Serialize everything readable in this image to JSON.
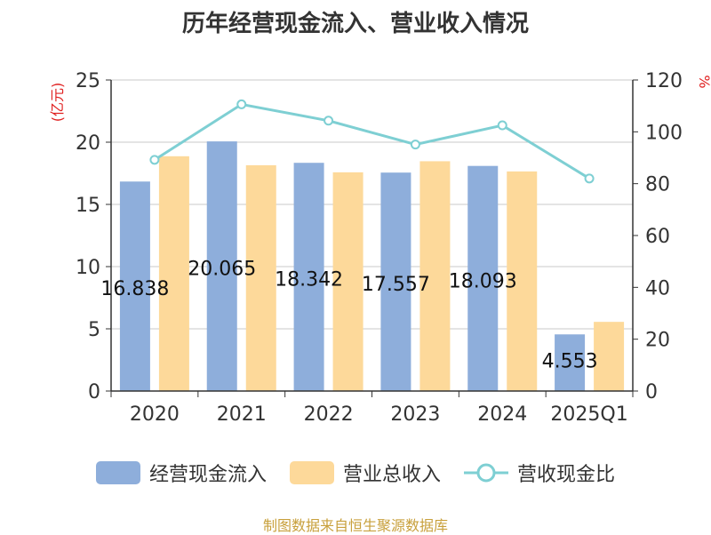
{
  "chart_data": {
    "type": "bar",
    "title": "历年经营现金流入、营业收入情况",
    "categories": [
      "2020",
      "2021",
      "2022",
      "2023",
      "2024",
      "2025Q1"
    ],
    "y_left": {
      "label": "(亿元)",
      "ylim": [
        0,
        25
      ],
      "ticks": [
        0,
        5,
        10,
        15,
        20,
        25
      ]
    },
    "y_right": {
      "label": "%",
      "ylim": [
        0,
        120
      ],
      "ticks": [
        0,
        20,
        40,
        60,
        80,
        100,
        120
      ]
    },
    "series": [
      {
        "name": "经营现金流入",
        "type": "bar",
        "axis": "left",
        "color": "#8eaedb",
        "values": [
          16.838,
          20.065,
          18.342,
          17.557,
          18.093,
          4.553
        ],
        "labels": [
          "16.838",
          "20.065",
          "18.342",
          "17.557",
          "18.093",
          "4.553"
        ]
      },
      {
        "name": "营业总收入",
        "type": "bar",
        "axis": "left",
        "color": "#fdd99a",
        "values": [
          18.87,
          18.15,
          17.58,
          18.47,
          17.65,
          5.56
        ]
      },
      {
        "name": "营收现金比",
        "type": "line",
        "axis": "right",
        "color": "#7ecfd3",
        "values": [
          89.2,
          110.6,
          104.3,
          95.1,
          102.5,
          82.0
        ]
      }
    ],
    "grid": true,
    "legend": "bottom"
  },
  "footer": "制图数据来自恒生聚源数据库"
}
